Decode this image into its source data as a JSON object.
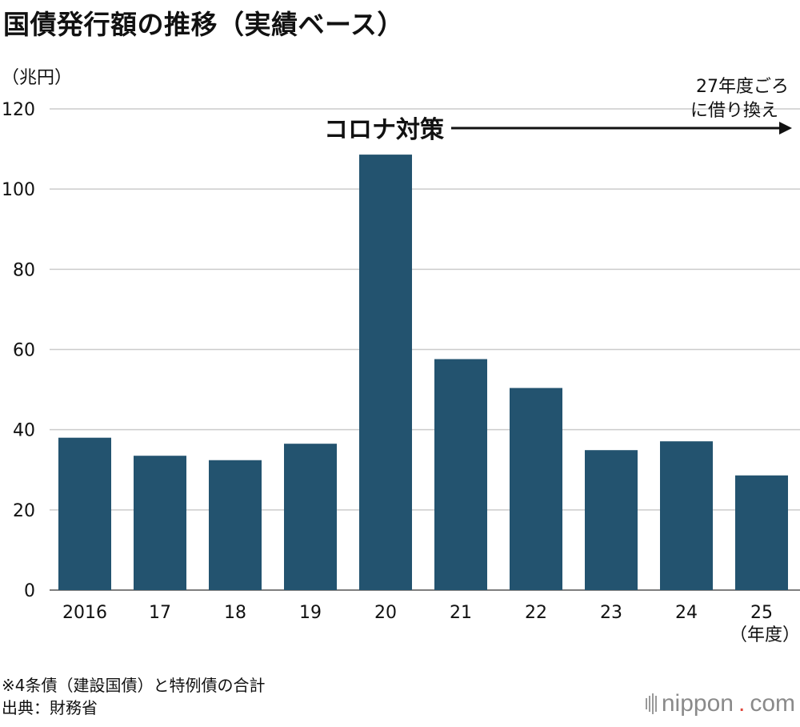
{
  "title": "国債発行額の推移（実績ベース）",
  "chart_data": {
    "type": "bar",
    "title": "国債発行額の推移（実績ベース）",
    "ylabel": "（兆円）",
    "xlabel": "（年度）",
    "categories": [
      "2016",
      "17",
      "18",
      "19",
      "20",
      "21",
      "22",
      "23",
      "24",
      "25"
    ],
    "values": [
      38.0,
      33.5,
      32.4,
      36.5,
      108.6,
      57.6,
      50.4,
      34.9,
      37.1,
      28.6
    ],
    "ylim": [
      0,
      120
    ],
    "yticks": [
      0,
      20,
      40,
      60,
      80,
      100,
      120
    ],
    "grid": true,
    "bar_color": "#23536f",
    "annotations": {
      "corona": "コロナ対策",
      "refinance_line1": "27年度ごろ",
      "refinance_line2": "に借り換え"
    }
  },
  "footnote": {
    "note": "※4条債（建設国債）と特例債の合計",
    "source": "出典：財務省"
  },
  "logo": {
    "name": "nippon",
    "dot": ".",
    "suffix": "com"
  }
}
